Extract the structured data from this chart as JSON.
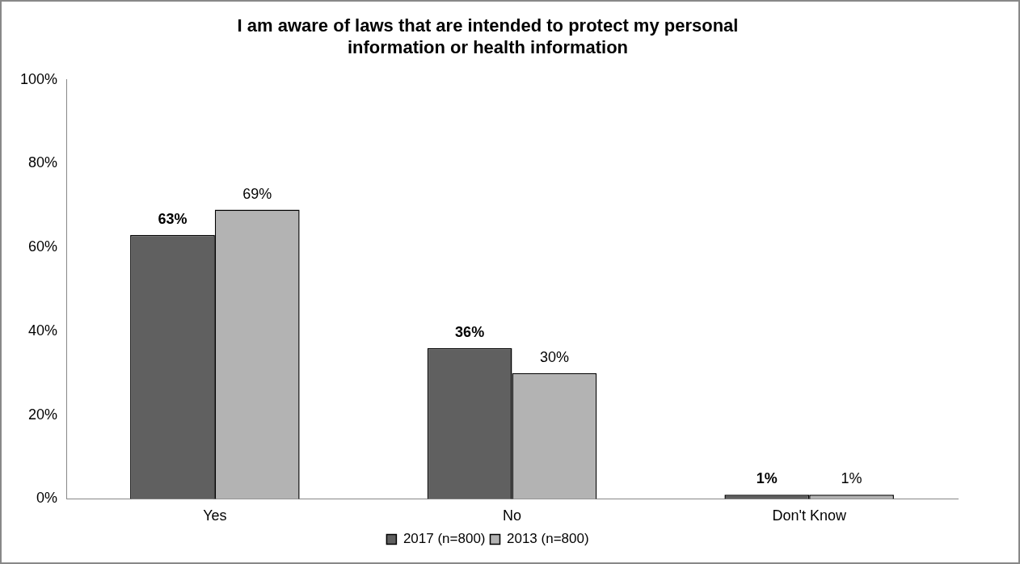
{
  "chart_data": {
    "type": "bar",
    "title": "I am aware of laws that are intended to protect my personal information or health information",
    "categories": [
      "Yes",
      "No",
      "Don't Know"
    ],
    "series": [
      {
        "name": "2017 (n=800)",
        "color": "#606060",
        "values": [
          63,
          36,
          1
        ],
        "value_labels": [
          "63%",
          "36%",
          "1%"
        ]
      },
      {
        "name": "2013 (n=800)",
        "color": "#b3b3b3",
        "values": [
          69,
          30,
          1
        ],
        "value_labels": [
          "69%",
          "30%",
          "1%"
        ]
      }
    ],
    "ylim": [
      0,
      100
    ],
    "yticks": [
      {
        "value": 0,
        "label": "0%"
      },
      {
        "value": 20,
        "label": "20%"
      },
      {
        "value": 40,
        "label": "40%"
      },
      {
        "value": 60,
        "label": "60%"
      },
      {
        "value": 80,
        "label": "80%"
      },
      {
        "value": 100,
        "label": "100%"
      }
    ],
    "grid": false,
    "legend": "bottom"
  }
}
